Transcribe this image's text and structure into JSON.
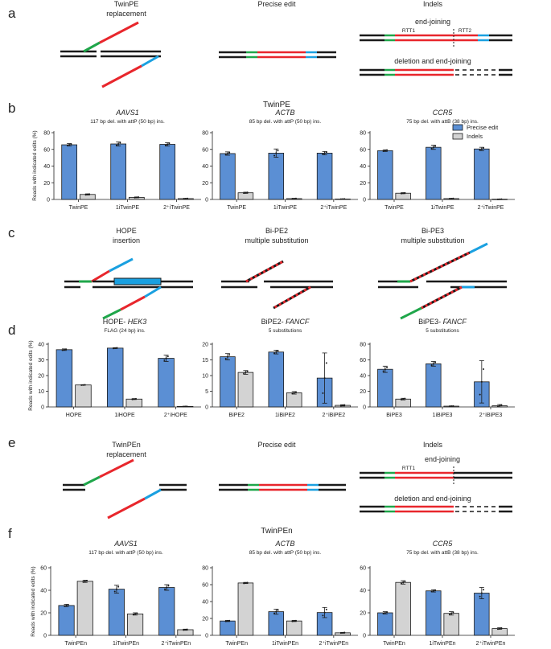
{
  "panel_letters": {
    "a": "a",
    "b": "b",
    "c": "c",
    "d": "d",
    "e": "e",
    "f": "f"
  },
  "legend": {
    "precise": "Precise edit",
    "indels": "Indels",
    "precise_color": "#5b8fd4",
    "indels_color": "#d3d3d3"
  },
  "colors": {
    "red": "#e8262c",
    "green": "#1fa64a",
    "blue": "#1aa0e0",
    "black": "#1a1a1a"
  },
  "section_a": {
    "col1_line1": "TwinPE",
    "col1_line2": "replacement",
    "col2": "Precise edit",
    "col3": "Indels",
    "end_joining": "end-joining",
    "rtt1": "RTT1",
    "rtt2": "RTT2",
    "deletion_end_joining": "deletion and end-joining"
  },
  "section_c": {
    "col1_line1": "HOPE",
    "col1_line2": "insertion",
    "col2_line1": "Bi-PE2",
    "col2_line2": "multiple substitution",
    "col3_line1": "Bi-PE3",
    "col3_line2": "multiple substitution"
  },
  "section_e": {
    "col1_line1": "TwinPEn",
    "col1_line2": "replacement",
    "col2": "Precise edit",
    "col3": "Indels",
    "end_joining": "end-joining",
    "rtt1": "RTT1",
    "deletion_end_joining": "deletion and end-joining"
  },
  "chart_data": [
    {
      "id": "b1",
      "type": "bar",
      "section_title": "TwinPE",
      "title_prefix": "",
      "title_gene": "AAVS1",
      "subtitle": "117 bp del. with attP (50 bp) ins.",
      "ylabel": "Reads with indicated edits (%)",
      "ylim": [
        0,
        80
      ],
      "ticks": [
        0,
        20,
        40,
        60,
        80
      ],
      "categories": [
        "TwinPE",
        "1iTwinPE",
        "2⁺iTwinPE"
      ],
      "series": [
        {
          "name": "Precise edit",
          "values": [
            65.5,
            66.5,
            66
          ],
          "errors": [
            1.5,
            2.5,
            2
          ]
        },
        {
          "name": "Indels",
          "values": [
            6,
            2.5,
            1
          ],
          "errors": [
            0.7,
            0.5,
            0.3
          ]
        }
      ]
    },
    {
      "id": "b2",
      "type": "bar",
      "title_prefix": "",
      "title_gene": "ACTB",
      "subtitle": "85 bp del. with attP (50 bp) ins.",
      "ylim": [
        0,
        80
      ],
      "ticks": [
        0,
        20,
        40,
        60,
        80
      ],
      "categories": [
        "TwinPE",
        "1iTwinPE",
        "2⁺iTwinPE"
      ],
      "series": [
        {
          "name": "Precise edit",
          "values": [
            55,
            55.5,
            55.5
          ],
          "errors": [
            2,
            5,
            2
          ]
        },
        {
          "name": "Indels",
          "values": [
            8,
            1,
            0.5
          ],
          "errors": [
            0.7,
            0.3,
            0.2
          ]
        }
      ]
    },
    {
      "id": "b3",
      "type": "bar",
      "title_prefix": "",
      "title_gene": "CCR5",
      "subtitle": "75 bp del. with attB (38 bp) ins.",
      "ylim": [
        0,
        80
      ],
      "ticks": [
        0,
        20,
        40,
        60,
        80
      ],
      "categories": [
        "TwinPE",
        "1iTwinPE",
        "2⁺iTwinPE"
      ],
      "series": [
        {
          "name": "Precise edit",
          "values": [
            58.5,
            62.5,
            60.5
          ],
          "errors": [
            1,
            2.5,
            2
          ]
        },
        {
          "name": "Indels",
          "values": [
            7.5,
            1,
            0.3
          ],
          "errors": [
            0.6,
            0.3,
            0.2
          ]
        }
      ]
    },
    {
      "id": "d1",
      "type": "bar",
      "title_prefix": "HOPE- ",
      "title_gene": "HEK3",
      "subtitle": "FLAG (24 bp) ins.",
      "ylabel": "Reads with indicated edits (%)",
      "ylim": [
        0,
        40
      ],
      "ticks": [
        0,
        10,
        20,
        30,
        40
      ],
      "categories": [
        "HOPE",
        "1iHOPE",
        "2⁺iHOPE"
      ],
      "series": [
        {
          "name": "Precise edit",
          "values": [
            36.5,
            37.5,
            31
          ],
          "errors": [
            0.5,
            0.3,
            2
          ]
        },
        {
          "name": "Indels",
          "values": [
            14,
            5,
            0.3
          ],
          "errors": [
            0.2,
            0.3,
            0.1
          ]
        }
      ]
    },
    {
      "id": "d2",
      "type": "bar",
      "title_prefix": "BiPE2- ",
      "title_gene": "FANCF",
      "subtitle": "5 substitutions",
      "ylim": [
        0,
        20
      ],
      "ticks": [
        0,
        5,
        10,
        15,
        20
      ],
      "categories": [
        "BiPE2",
        "1iBiPE2",
        "2⁺iBiPE2"
      ],
      "series": [
        {
          "name": "Precise edit",
          "values": [
            16,
            17.5,
            9.2
          ],
          "errors": [
            1,
            0.6,
            8
          ]
        },
        {
          "name": "Indels",
          "values": [
            11,
            4.5,
            0.5
          ],
          "errors": [
            0.6,
            0.4,
            0.2
          ]
        }
      ]
    },
    {
      "id": "d3",
      "type": "bar",
      "title_prefix": "BiPE3- ",
      "title_gene": "FANCF",
      "subtitle": "5 substitutions",
      "ylim": [
        0,
        80
      ],
      "ticks": [
        0,
        20,
        40,
        60,
        80
      ],
      "categories": [
        "BiPE3",
        "1iBiPE3",
        "2⁺iBiPE3"
      ],
      "series": [
        {
          "name": "Precise edit",
          "values": [
            48,
            55,
            32
          ],
          "errors": [
            4,
            3,
            27
          ]
        },
        {
          "name": "Indels",
          "values": [
            10,
            1,
            1.5
          ],
          "errors": [
            1,
            0.3,
            1.5
          ]
        }
      ]
    },
    {
      "id": "f1",
      "type": "bar",
      "section_title": "TwinPEn",
      "title_prefix": "",
      "title_gene": "AAVS1",
      "subtitle": "117 bp del. with attP (50 bp) ins.",
      "ylabel": "Reads with indicated edits (%)",
      "ylim": [
        0,
        60
      ],
      "ticks": [
        0,
        20,
        40,
        60
      ],
      "categories": [
        "TwinPEn",
        "1iTwinPEn",
        "2⁺iTwinPEn"
      ],
      "series": [
        {
          "name": "Precise edit",
          "values": [
            26.5,
            41,
            42.5
          ],
          "errors": [
            1,
            3.5,
            2.5
          ]
        },
        {
          "name": "Indels",
          "values": [
            48,
            19,
            5
          ],
          "errors": [
            1,
            1,
            0.5
          ]
        }
      ]
    },
    {
      "id": "f2",
      "type": "bar",
      "title_prefix": "",
      "title_gene": "ACTB",
      "subtitle": "85 bp del. with attP (50 bp) ins.",
      "ylim": [
        0,
        80
      ],
      "ticks": [
        0,
        20,
        40,
        60,
        80
      ],
      "categories": [
        "TwinPEn",
        "1iTwinPEn",
        "2⁺iTwinPEn"
      ],
      "series": [
        {
          "name": "Precise edit",
          "values": [
            17,
            28,
            27
          ],
          "errors": [
            0.7,
            3,
            6
          ]
        },
        {
          "name": "Indels",
          "values": [
            62,
            17,
            3
          ],
          "errors": [
            0.7,
            0.7,
            0.5
          ]
        }
      ]
    },
    {
      "id": "f3",
      "type": "bar",
      "title_prefix": "",
      "title_gene": "CCR5",
      "subtitle": "75 bp del. with attB (38 bp) ins.",
      "ylim": [
        0,
        60
      ],
      "ticks": [
        0,
        20,
        40,
        60
      ],
      "categories": [
        "TwinPEn",
        "1iTwinPEn",
        "2⁺iTwinPEn"
      ],
      "series": [
        {
          "name": "Precise edit",
          "values": [
            20,
            39.5,
            37.5
          ],
          "errors": [
            1,
            1,
            5
          ]
        },
        {
          "name": "Indels",
          "values": [
            47,
            19.5,
            6
          ],
          "errors": [
            1.5,
            1.5,
            0.7
          ]
        }
      ]
    }
  ]
}
